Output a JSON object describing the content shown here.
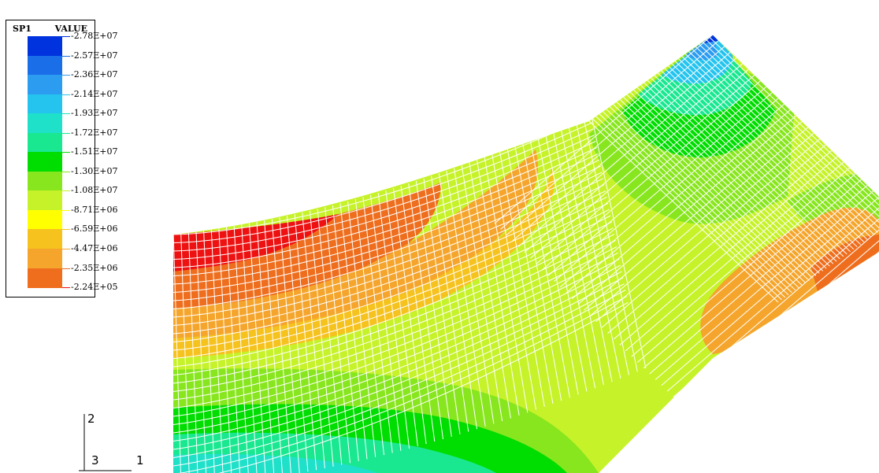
{
  "legend": {
    "variable": "SP1",
    "header": "VALUE",
    "levels": [
      {
        "label": "-2.78E+07",
        "color": "#0033dd"
      },
      {
        "label": "-2.57E+07",
        "color": "#1a6fe8"
      },
      {
        "label": "-2.36E+07",
        "color": "#2c9cf0"
      },
      {
        "label": "-2.14E+07",
        "color": "#25c4ee"
      },
      {
        "label": "-1.93E+07",
        "color": "#1fe0c8"
      },
      {
        "label": "-1.72E+07",
        "color": "#19e890"
      },
      {
        "label": "-1.51E+07",
        "color": "#00dd00"
      },
      {
        "label": "-1.30E+07",
        "color": "#88e61e"
      },
      {
        "label": "-1.08E+07",
        "color": "#c6f229"
      },
      {
        "label": "-8.71E+06",
        "color": "#ffff00"
      },
      {
        "label": "-6.59E+06",
        "color": "#f6c21d"
      },
      {
        "label": "-4.47E+06",
        "color": "#f5a52c"
      },
      {
        "label": "-2.35E+06",
        "color": "#ee6e1e"
      },
      {
        "label": "-2.24E+05",
        "color": "#ee1111"
      }
    ]
  },
  "triad": {
    "axis_2": "2",
    "axis_3": "3",
    "axis_1": "1"
  }
}
